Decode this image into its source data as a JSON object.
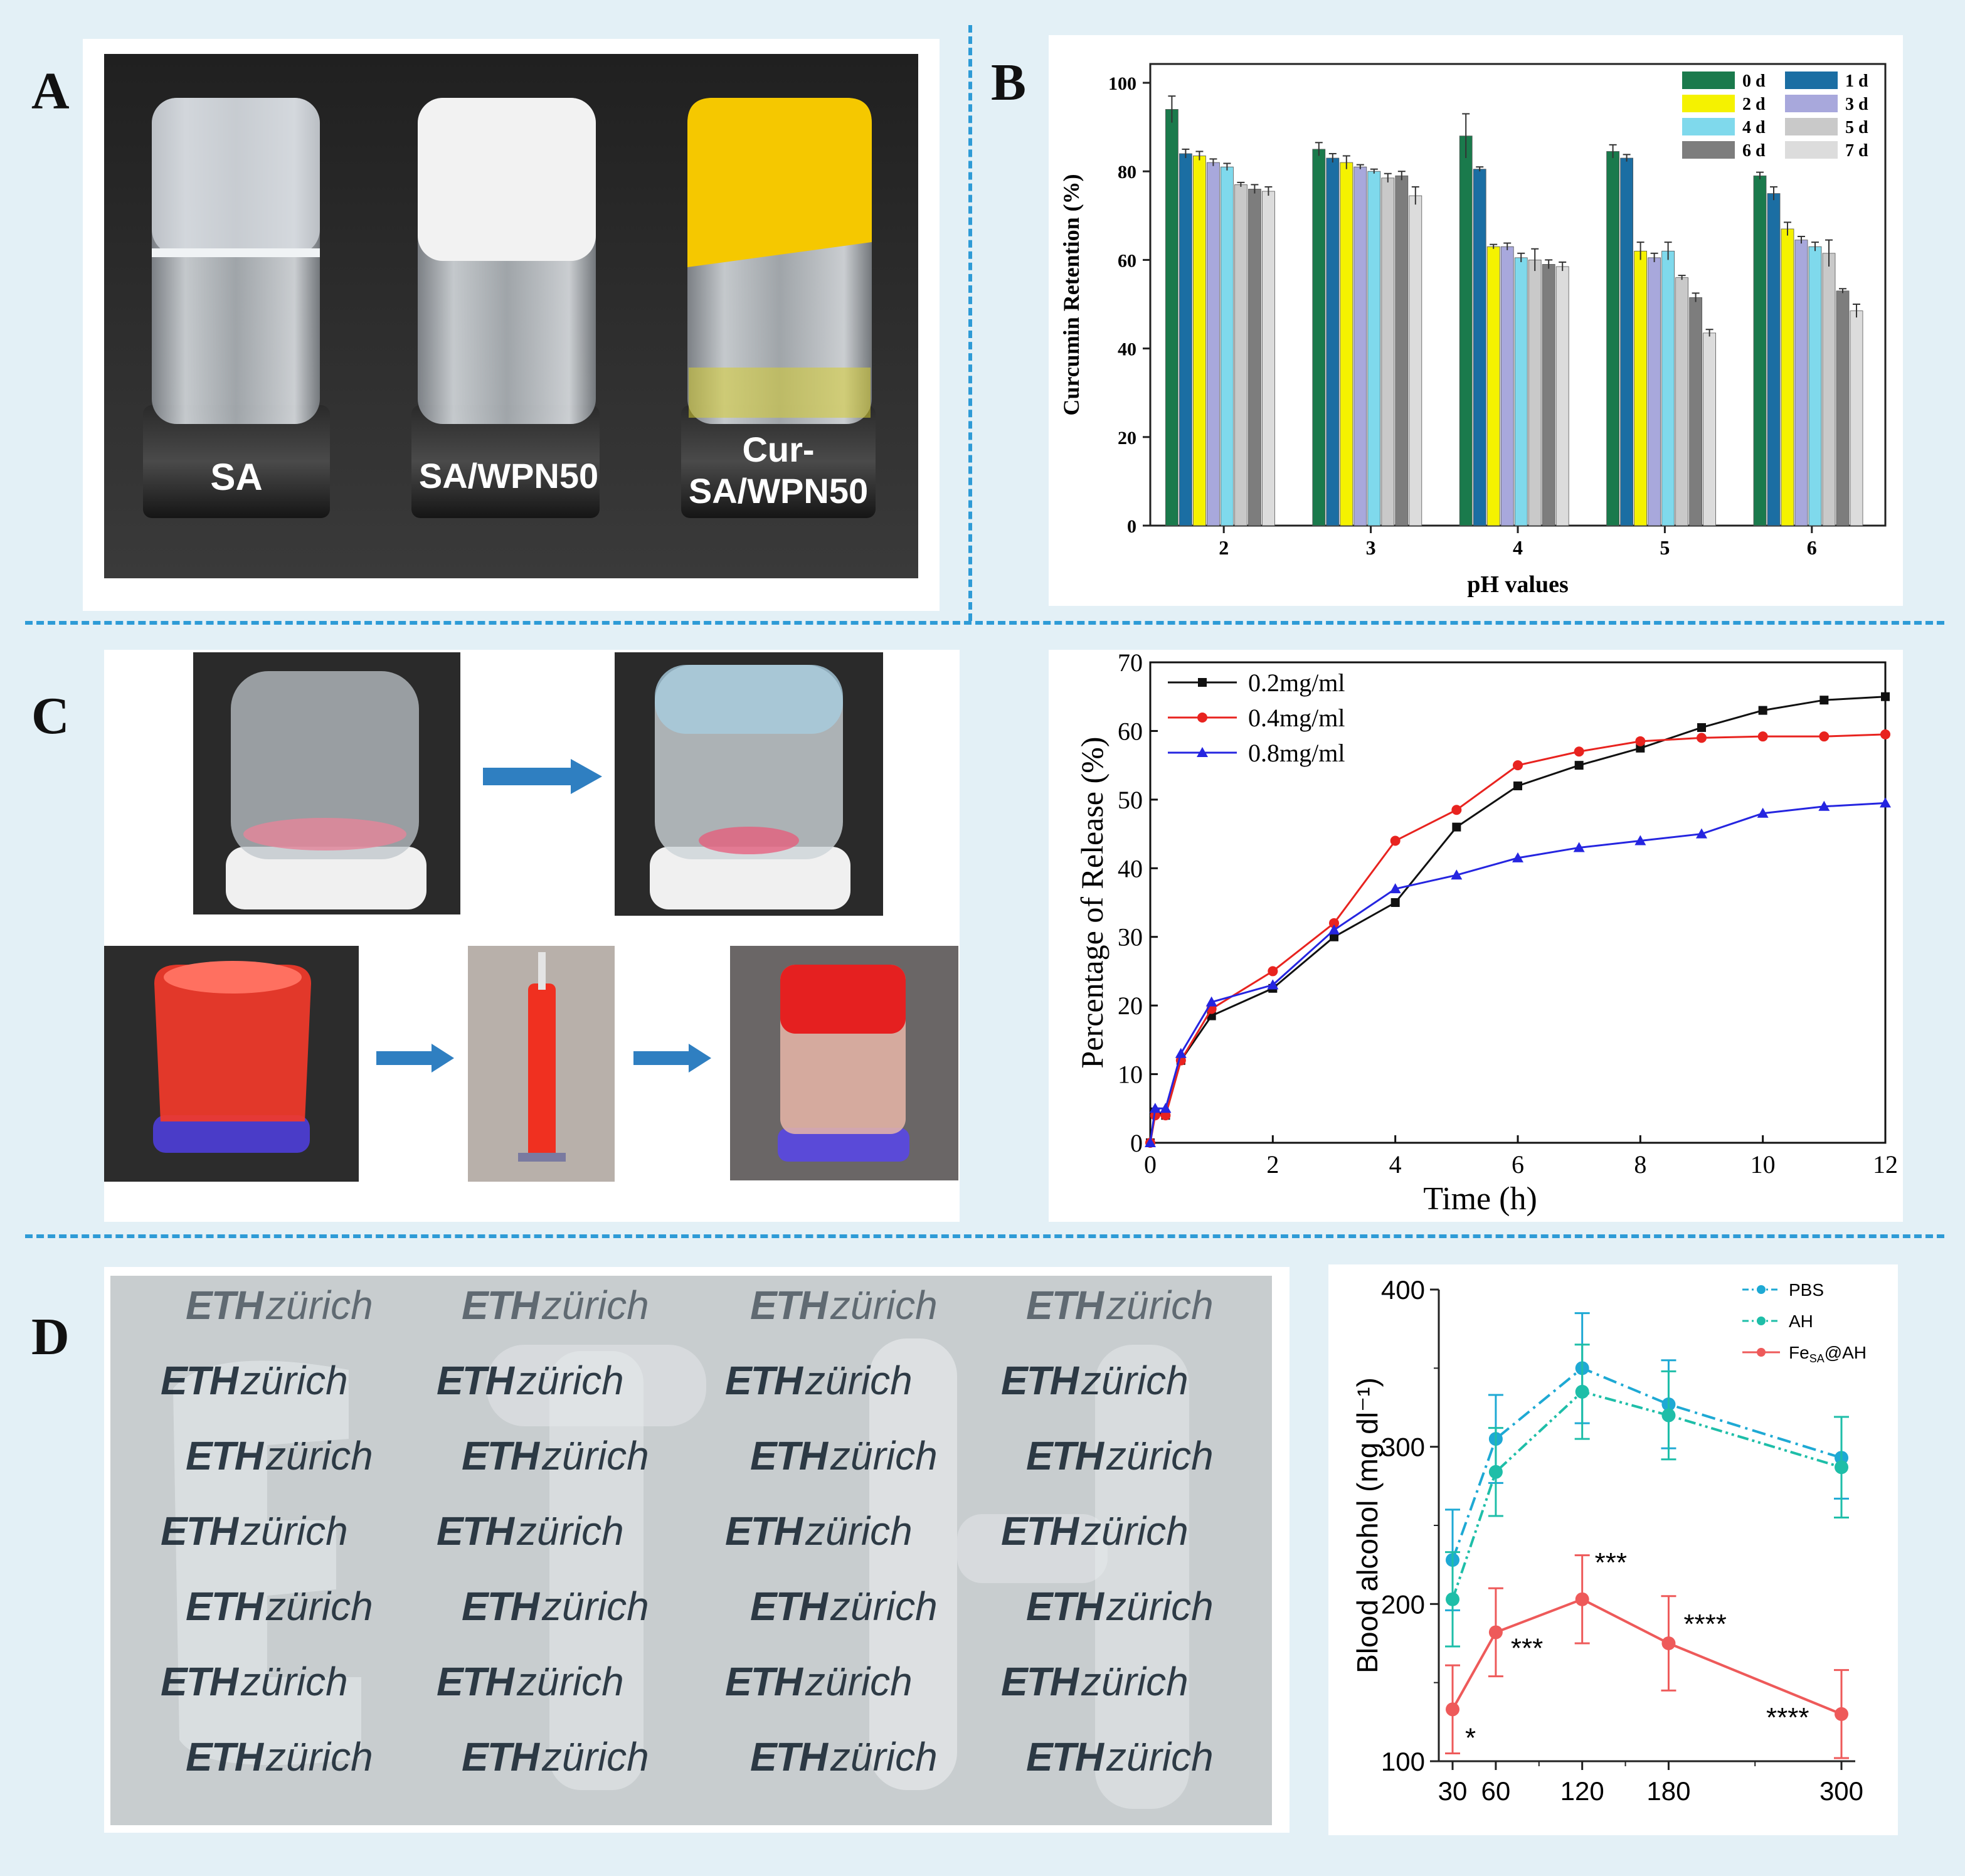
{
  "panels": {
    "a": {
      "letter": "A",
      "vial_labels": [
        "SA",
        "SA/WPN50",
        "Cur-",
        "SA/WPN50"
      ]
    },
    "b": {
      "letter": "B"
    },
    "c": {
      "letter": "C"
    },
    "d": {
      "letter": "D",
      "photo_text": [
        "ETH",
        "zürich"
      ]
    }
  },
  "chart_data": [
    {
      "id": "b",
      "type": "bar",
      "xlabel": "pH values",
      "ylabel": "Curcumin Retention (%)",
      "ylim": [
        0,
        100
      ],
      "yticks": [
        0,
        20,
        40,
        60,
        80,
        100
      ],
      "categories": [
        "2",
        "3",
        "4",
        "5",
        "6"
      ],
      "legend_position": "top-right",
      "series": [
        {
          "name": "0 d",
          "color": "#1a7a4c",
          "values": [
            94,
            85,
            88,
            84.5,
            79
          ],
          "errors": [
            3,
            1.5,
            5,
            1.5,
            0.8
          ]
        },
        {
          "name": "1 d",
          "color": "#1b6ea3",
          "values": [
            84,
            83,
            80.5,
            83,
            75
          ],
          "errors": [
            1,
            1,
            0.5,
            0.8,
            1.5
          ]
        },
        {
          "name": "2 d",
          "color": "#f5f200",
          "values": [
            83.5,
            82,
            63,
            62,
            67
          ],
          "errors": [
            1,
            1.5,
            0.5,
            2,
            1.5
          ]
        },
        {
          "name": "3 d",
          "color": "#a8a8dc",
          "values": [
            82,
            81,
            63,
            60.5,
            64.5
          ],
          "errors": [
            0.8,
            0.5,
            0.8,
            1,
            0.8
          ]
        },
        {
          "name": "4 d",
          "color": "#7fd9ec",
          "values": [
            81,
            80,
            60.5,
            62,
            63
          ],
          "errors": [
            0.8,
            0.5,
            1,
            2,
            1
          ]
        },
        {
          "name": "5 d",
          "color": "#c9c9c9",
          "values": [
            77,
            78.5,
            60,
            56,
            61.5
          ],
          "errors": [
            0.5,
            1,
            2.5,
            0.5,
            3
          ]
        },
        {
          "name": "6 d",
          "color": "#7d7d7d",
          "values": [
            76,
            79,
            59,
            51.5,
            53
          ],
          "errors": [
            1,
            1,
            1,
            1,
            0.5
          ]
        },
        {
          "name": "7 d",
          "color": "#dcdcdc",
          "values": [
            75.5,
            74.5,
            58.5,
            43.5,
            48.5
          ],
          "errors": [
            1,
            2,
            1,
            0.8,
            1.5
          ]
        }
      ]
    },
    {
      "id": "c",
      "type": "line",
      "xlabel": "Time (h)",
      "ylabel": "Percentage of  Release (%)",
      "xlim": [
        0,
        12
      ],
      "ylim": [
        0,
        70
      ],
      "xticks": [
        0,
        2,
        4,
        6,
        8,
        10,
        12
      ],
      "yticks": [
        0,
        10,
        20,
        30,
        40,
        50,
        60,
        70
      ],
      "legend_position": "top-left",
      "series": [
        {
          "name": "0.2mg/ml",
          "color": "#111111",
          "marker": "square",
          "x": [
            0,
            0.08,
            0.25,
            0.5,
            1,
            2,
            3,
            4,
            5,
            6,
            7,
            8,
            9,
            10,
            11,
            12
          ],
          "y": [
            0,
            4.5,
            4,
            12,
            18.5,
            22.5,
            30,
            35,
            46,
            52,
            55,
            57.5,
            60.5,
            63,
            64.5,
            65
          ]
        },
        {
          "name": "0.4mg/ml",
          "color": "#e8231f",
          "marker": "circle",
          "x": [
            0,
            0.08,
            0.25,
            0.5,
            1,
            2,
            3,
            4,
            5,
            6,
            7,
            8,
            9,
            10,
            11,
            12
          ],
          "y": [
            0,
            4,
            4,
            12,
            19.5,
            25,
            32,
            44,
            48.5,
            55,
            57,
            58.5,
            59,
            59.2,
            59.2,
            59.5
          ]
        },
        {
          "name": "0.8mg/ml",
          "color": "#2525e0",
          "marker": "triangle",
          "x": [
            0,
            0.08,
            0.25,
            0.5,
            1,
            2,
            3,
            4,
            5,
            6,
            7,
            8,
            9,
            10,
            11,
            12
          ],
          "y": [
            0,
            5,
            5,
            13,
            20.5,
            23,
            31,
            37,
            39,
            41.5,
            43,
            44,
            45,
            48,
            49,
            49.5
          ]
        }
      ]
    },
    {
      "id": "d",
      "type": "line",
      "ylabel": "Blood alcohol (mg dl⁻¹)",
      "xlim": [
        30,
        300
      ],
      "ylim": [
        100,
        400
      ],
      "xticks": [
        30,
        60,
        120,
        180,
        300
      ],
      "yticks": [
        100,
        200,
        300,
        400
      ],
      "legend_position": "top-right",
      "series": [
        {
          "name": "PBS",
          "color": "#1ea9d4",
          "dash": "dashdot",
          "x": [
            30,
            60,
            120,
            180,
            300
          ],
          "y": [
            228,
            305,
            350,
            327,
            293
          ],
          "errors": [
            32,
            28,
            35,
            28,
            26
          ]
        },
        {
          "name": "AH",
          "color": "#1ebea8",
          "dash": "dashdotdot",
          "x": [
            30,
            60,
            120,
            180,
            300
          ],
          "y": [
            203,
            284,
            335,
            320,
            287
          ],
          "errors": [
            30,
            28,
            30,
            28,
            32
          ]
        },
        {
          "name": "Fe",
          "name_sub": "SA",
          "name_suffix": "@AH",
          "color": "#ee5a5a",
          "dash": "solid",
          "x": [
            30,
            60,
            120,
            180,
            300
          ],
          "y": [
            133,
            182,
            203,
            175,
            130
          ],
          "errors": [
            28,
            28,
            28,
            30,
            28
          ]
        }
      ],
      "annotations": [
        {
          "x": 30,
          "y": 133,
          "text": "*"
        },
        {
          "x": 60,
          "y": 182,
          "text": "***"
        },
        {
          "x": 120,
          "y": 203,
          "text": "***"
        },
        {
          "x": 180,
          "y": 175,
          "text": "****"
        },
        {
          "x": 300,
          "y": 130,
          "text": "****"
        }
      ]
    }
  ]
}
